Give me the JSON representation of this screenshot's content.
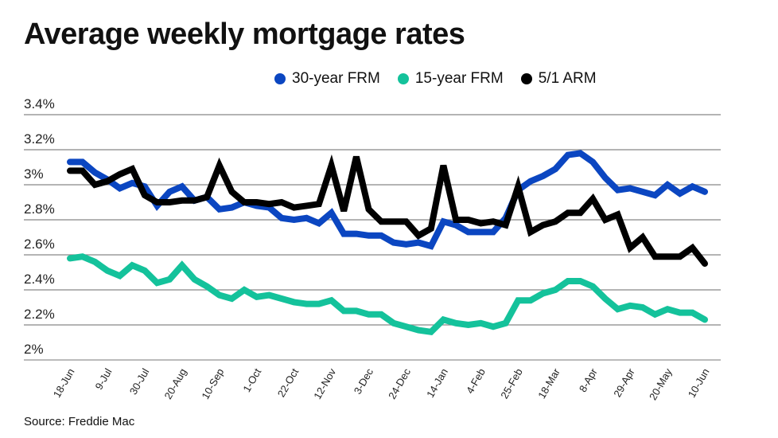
{
  "chart_data": {
    "type": "line",
    "title": "Average weekly mortgage rates",
    "source": "Source: Freddie Mac",
    "xlabel": "",
    "ylabel": "",
    "ylim": [
      2.0,
      3.4
    ],
    "yticks": [
      2.0,
      2.2,
      2.4,
      2.6,
      2.8,
      3.0,
      3.2,
      3.4
    ],
    "ytick_labels": [
      "2%",
      "2.2%",
      "2.4%",
      "2.6%",
      "2.8%",
      "3%",
      "3.2%",
      "3.4%"
    ],
    "grid": "horizontal",
    "legend_placement": "top",
    "xtick_labels": [
      "18-Jun",
      "9-Jul",
      "30-Jul",
      "20-Aug",
      "10-Sep",
      "1-Oct",
      "22-Oct",
      "12-Nov",
      "3-Dec",
      "24-Dec",
      "14-Jan",
      "4-Feb",
      "25-Feb",
      "18-Mar",
      "8-Apr",
      "29-Apr",
      "20-May",
      "10-Jun"
    ],
    "xtick_every_weeks": 3,
    "series": [
      {
        "name": "30-year FRM",
        "color": "#0b46c1",
        "values": [
          3.13,
          3.13,
          3.07,
          3.03,
          2.98,
          3.01,
          2.99,
          2.88,
          2.96,
          2.99,
          2.91,
          2.93,
          2.86,
          2.87,
          2.9,
          2.88,
          2.87,
          2.81,
          2.8,
          2.81,
          2.78,
          2.84,
          2.72,
          2.72,
          2.71,
          2.71,
          2.67,
          2.66,
          2.67,
          2.65,
          2.79,
          2.77,
          2.73,
          2.73,
          2.73,
          2.81,
          2.97,
          3.02,
          3.05,
          3.09,
          3.17,
          3.18,
          3.13,
          3.04,
          2.97,
          2.98,
          2.96,
          2.94,
          3.0,
          2.95,
          2.99,
          2.96
        ]
      },
      {
        "name": "15-year FRM",
        "color": "#14c29b",
        "values": [
          2.58,
          2.59,
          2.56,
          2.51,
          2.48,
          2.54,
          2.51,
          2.44,
          2.46,
          2.54,
          2.46,
          2.42,
          2.37,
          2.35,
          2.4,
          2.36,
          2.37,
          2.35,
          2.33,
          2.32,
          2.32,
          2.34,
          2.28,
          2.28,
          2.26,
          2.26,
          2.21,
          2.19,
          2.17,
          2.16,
          2.23,
          2.21,
          2.2,
          2.21,
          2.19,
          2.21,
          2.34,
          2.34,
          2.38,
          2.4,
          2.45,
          2.45,
          2.42,
          2.35,
          2.29,
          2.31,
          2.3,
          2.26,
          2.29,
          2.27,
          2.27,
          2.23
        ]
      },
      {
        "name": "5/1 ARM",
        "color": "#000000",
        "values": [
          3.08,
          3.08,
          3.0,
          3.02,
          3.06,
          3.09,
          2.94,
          2.9,
          2.9,
          2.91,
          2.91,
          2.93,
          3.11,
          2.96,
          2.9,
          2.9,
          2.89,
          2.9,
          2.87,
          2.88,
          2.89,
          3.11,
          2.85,
          3.16,
          2.86,
          2.79,
          2.79,
          2.79,
          2.71,
          2.75,
          3.11,
          2.8,
          2.8,
          2.78,
          2.79,
          2.77,
          2.99,
          2.73,
          2.77,
          2.79,
          2.84,
          2.84,
          2.92,
          2.8,
          2.83,
          2.64,
          2.7,
          2.59,
          2.59,
          2.59,
          2.64,
          2.55
        ]
      }
    ]
  }
}
